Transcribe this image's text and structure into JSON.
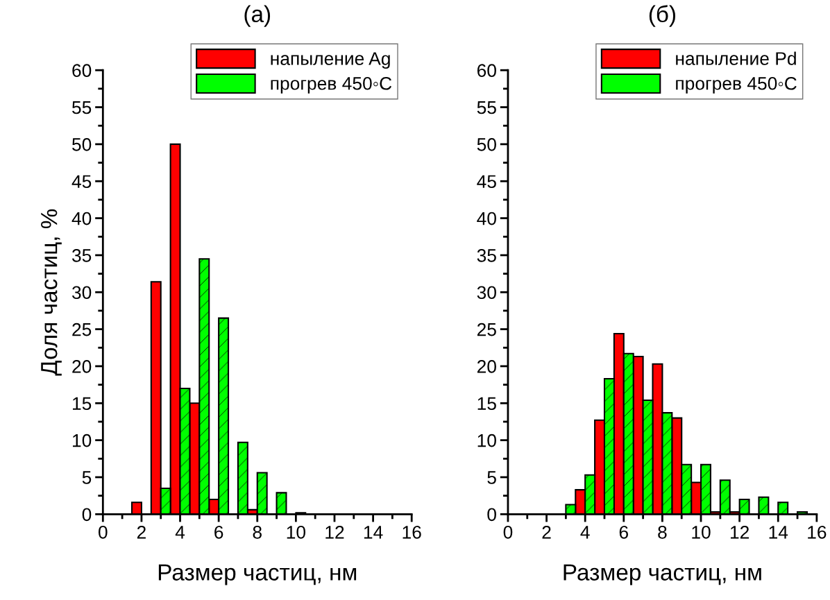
{
  "chart_data": [
    {
      "type": "bar",
      "title": "(a)",
      "xlabel": "Размер частиц, нм",
      "ylabel": "Доля частиц, %",
      "xlim": [
        0,
        16
      ],
      "xticks": [
        0,
        2,
        4,
        6,
        8,
        10,
        12,
        14,
        16
      ],
      "ylim": [
        0,
        60
      ],
      "yticks": [
        0,
        5,
        10,
        15,
        20,
        25,
        30,
        35,
        40,
        45,
        50,
        55,
        60
      ],
      "grid": false,
      "legend": "top",
      "series": [
        {
          "name": "напыление Ag",
          "color": "#ff0000",
          "x": [
            1.75,
            2.75,
            3.75,
            4.75,
            5.75,
            7.75
          ],
          "values": [
            1.6,
            31.4,
            50,
            15,
            2,
            0.6
          ]
        },
        {
          "name": "прогрев 450◦C",
          "color": "#00ff00",
          "x": [
            3.25,
            4.25,
            5.25,
            6.25,
            7.25,
            8.25,
            9.25,
            10.25
          ],
          "values": [
            3.5,
            17,
            34.5,
            26.5,
            9.7,
            5.6,
            2.9,
            0.2
          ]
        }
      ]
    },
    {
      "type": "bar",
      "title": "(б)",
      "xlabel": "Размер частиц, нм",
      "xlim": [
        0,
        16
      ],
      "xticks": [
        0,
        2,
        4,
        6,
        8,
        10,
        12,
        14,
        16
      ],
      "ylim": [
        0,
        60
      ],
      "yticks": [
        0,
        5,
        10,
        15,
        20,
        25,
        30,
        35,
        40,
        45,
        50,
        55,
        60
      ],
      "grid": false,
      "legend": "top",
      "series": [
        {
          "name": "напыление Pd",
          "color": "#ff0000",
          "x": [
            3.75,
            4.75,
            5.75,
            6.75,
            7.75,
            8.75,
            9.75,
            10.75,
            11.75
          ],
          "values": [
            3.3,
            12.7,
            24.4,
            21.3,
            20.3,
            13.0,
            4.3,
            0.3,
            0.3
          ]
        },
        {
          "name": "прогрев 450◦C",
          "color": "#00ff00",
          "x": [
            3.25,
            4.25,
            5.25,
            6.25,
            7.25,
            8.25,
            9.25,
            10.25,
            11.25,
            12.25,
            13.25,
            14.25,
            15.25
          ],
          "values": [
            1.3,
            5.3,
            18.3,
            21.7,
            15.4,
            13.7,
            6.7,
            6.7,
            4.6,
            2.0,
            2.3,
            1.6,
            0.3
          ]
        }
      ]
    }
  ]
}
